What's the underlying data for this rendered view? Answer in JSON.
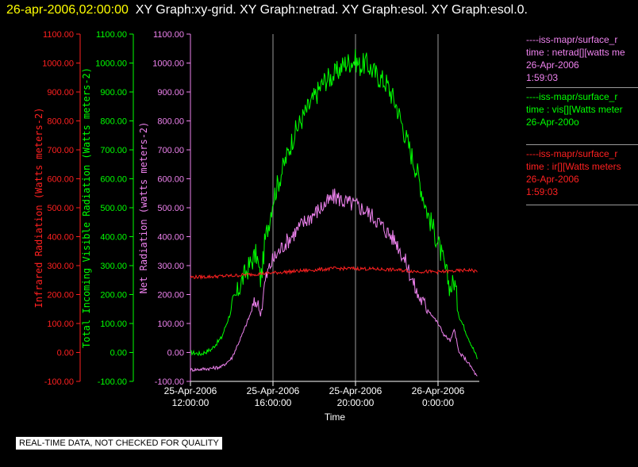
{
  "header": {
    "date": "26-apr-2006,02:00:00",
    "graphs": "XY Graph:xy-grid.  XY Graph:netrad.  XY Graph:esol.  XY Graph:esol.0."
  },
  "footer_text": "REAL-TIME DATA, NOT CHECKED FOR QUALITY",
  "legend": {
    "netrad": [
      "----iss-mapr/surface_r",
      "time : netrad[][watts me",
      "26-Apr-2006",
      "1:59:03"
    ],
    "vis": [
      "----iss-mapr/surface_r",
      "time : vis[][Watts meter",
      "26-Apr-200o"
    ],
    "ir": [
      "----iss-mapr/surface_r",
      "time : ir[][Watts meters",
      "26-Apr-2006",
      "1:59:03"
    ]
  },
  "colors": {
    "netrad": "#ee82ee",
    "vis": "#00ff00",
    "ir": "#ff2020",
    "grid": "#9a9a9a"
  },
  "chart_data": {
    "type": "line",
    "xlabel": "Time",
    "x_ticks": [
      {
        "hour": 12,
        "date": "25-Apr-2006",
        "time": "12:00:00"
      },
      {
        "hour": 16,
        "date": "25-Apr-2006",
        "time": "16:00:00"
      },
      {
        "hour": 20,
        "date": "25-Apr-2006",
        "time": "20:00:00"
      },
      {
        "hour": 24,
        "date": "26-Apr-2006",
        "time": "0:00:00"
      }
    ],
    "xlim_hours": [
      12,
      26
    ],
    "y_axes": [
      {
        "name": "ir_axis",
        "label": "Infrared Radiation (Watts meters-2)",
        "color": "#ff2020"
      },
      {
        "name": "vis_axis",
        "label": "Total Incoming Visible Radiation (Watts meters-2)",
        "color": "#00ff00"
      },
      {
        "name": "netrad_axis",
        "label": "Net Radiation (watts meters-2)",
        "color": "#ee82ee"
      }
    ],
    "ylim": [
      -100,
      1100
    ],
    "y_ticks": [
      "1100.00",
      "1000.00",
      "900.00",
      "800.00",
      "700.00",
      "600.00",
      "500.00",
      "400.00",
      "300.00",
      "200.00",
      "100.00",
      "0.00",
      "-100.00"
    ],
    "series": [
      {
        "key": "vis",
        "color": "#00ff00",
        "x": [
          12.0,
          12.5,
          13.0,
          13.5,
          14.0,
          14.5,
          15.0,
          15.2,
          15.4,
          15.5,
          15.6,
          15.8,
          16.0,
          16.5,
          17.0,
          17.5,
          18.0,
          18.5,
          19.0,
          19.5,
          20.0,
          20.2,
          20.5,
          21.0,
          21.5,
          22.0,
          22.5,
          23.0,
          23.5,
          24.0,
          24.3,
          24.6,
          24.8,
          25.0,
          25.3,
          25.6,
          25.9
        ],
        "y": [
          0,
          -5,
          10,
          50,
          150,
          250,
          320,
          340,
          250,
          300,
          380,
          450,
          530,
          640,
          750,
          820,
          880,
          940,
          960,
          1000,
          1010,
          990,
          1000,
          960,
          930,
          850,
          730,
          620,
          480,
          380,
          300,
          220,
          250,
          130,
          80,
          30,
          -20
        ],
        "noise": 40
      },
      {
        "key": "netrad",
        "color": "#ee82ee",
        "x": [
          12.0,
          12.5,
          13.0,
          13.5,
          14.0,
          14.5,
          15.0,
          15.2,
          15.4,
          15.5,
          15.6,
          15.8,
          16.0,
          16.5,
          17.0,
          17.5,
          18.0,
          18.5,
          19.0,
          19.5,
          20.0,
          20.5,
          21.0,
          21.5,
          22.0,
          22.5,
          23.0,
          23.5,
          24.0,
          24.3,
          24.6,
          24.8,
          25.0,
          25.3,
          25.6,
          25.9
        ],
        "y": [
          -60,
          -58,
          -55,
          -50,
          -20,
          60,
          150,
          180,
          130,
          180,
          240,
          290,
          320,
          370,
          410,
          450,
          480,
          510,
          540,
          520,
          510,
          490,
          460,
          420,
          380,
          300,
          200,
          150,
          100,
          60,
          40,
          80,
          0,
          -20,
          -50,
          -85
        ],
        "noise": 30
      },
      {
        "key": "ir",
        "color": "#ff2020",
        "x": [
          12.0,
          13.0,
          14.0,
          15.0,
          16.0,
          17.0,
          18.0,
          19.0,
          20.0,
          21.0,
          22.0,
          23.0,
          24.0,
          25.0,
          25.5,
          25.9
        ],
        "y": [
          260,
          262,
          265,
          270,
          275,
          280,
          285,
          290,
          290,
          288,
          285,
          280,
          278,
          282,
          285,
          280
        ],
        "noise": 6
      }
    ]
  }
}
